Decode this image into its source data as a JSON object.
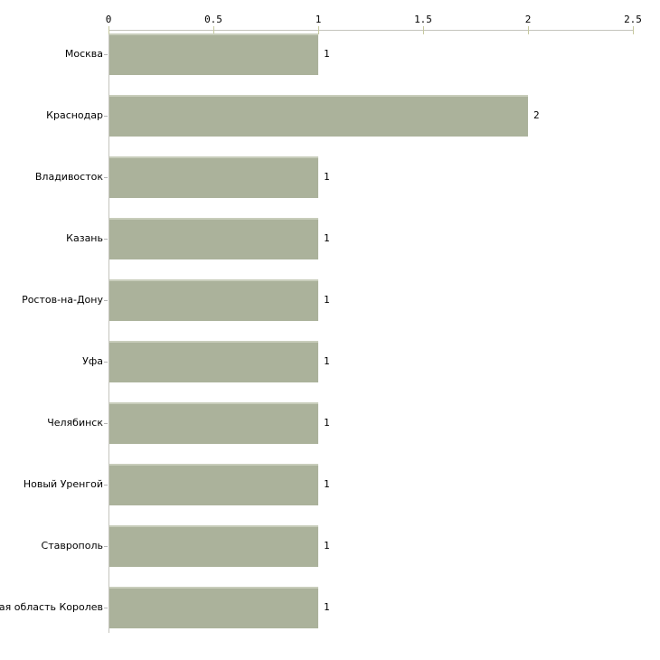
{
  "chart_data": {
    "type": "bar",
    "orientation": "horizontal",
    "title": "",
    "xlabel": "",
    "ylabel": "",
    "categories": [
      "Москва",
      "Краснодар",
      "Владивосток",
      "Казань",
      "Ростов-на-Дону",
      "Уфа",
      "Челябинск",
      "Новый Уренгой",
      "Ставрополь",
      "кая область Королев"
    ],
    "values": [
      1,
      2,
      1,
      1,
      1,
      1,
      1,
      1,
      1,
      1
    ],
    "value_labels": [
      "1",
      "2",
      "1",
      "1",
      "1",
      "1",
      "1",
      "1",
      "1",
      "1"
    ],
    "x_tick_labels": [
      "0",
      "0.5",
      "1",
      "1.5",
      "2",
      "2.5"
    ],
    "x_tick_values": [
      0,
      0.5,
      1,
      1.5,
      2,
      2.5
    ],
    "xlim": [
      0,
      2.5
    ],
    "grid": false,
    "legend": false,
    "colors": {
      "bar_fill": "#abb29b",
      "bar_top_highlight": "#c8cdbb",
      "axis_line": "#c4c4bc",
      "tick_mark": "#c6c89e",
      "text": "#000000"
    }
  }
}
